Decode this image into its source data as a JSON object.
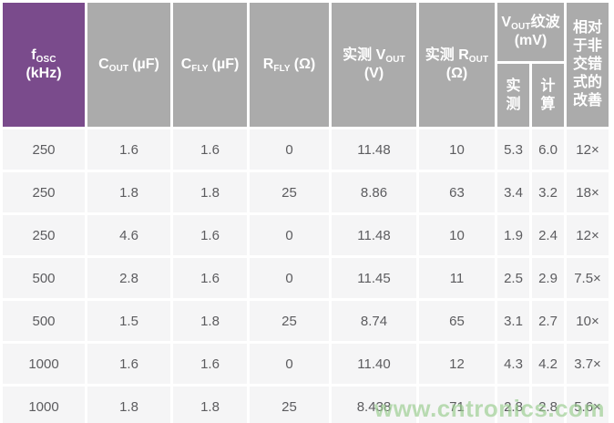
{
  "colors": {
    "header_purple": "#7A4B8C",
    "header_gray": "#ABABAB",
    "cell_bg": "#F5F5F6",
    "cell_text": "#5C5C5F",
    "watermark_green": "#96CB8C"
  },
  "watermark": "www.cntronics.com",
  "table": {
    "header": {
      "fosc": {
        "symbol": "f",
        "sub": "OSC",
        "unit": "(kHz)"
      },
      "cout": {
        "symbol": "C",
        "sub": "OUT",
        "unit": "(µF)"
      },
      "cfly": {
        "symbol": "C",
        "sub": "FLY",
        "unit": "(µF)"
      },
      "rfly": {
        "symbol": "R",
        "sub": "FLY",
        "unit": "(Ω)"
      },
      "vout_meas": {
        "prefix": "实测",
        "symbol": "V",
        "sub": "OUT",
        "unit": "(V)"
      },
      "rout_meas": {
        "prefix": "实测",
        "symbol": "R",
        "sub": "OUT",
        "unit": "(Ω)"
      },
      "ripple": {
        "symbol": "V",
        "sub": "OUT",
        "suffix": "纹波 (mV)"
      },
      "ripple_measured": "实\n测",
      "ripple_calculated": "计\n算",
      "improvement": "相对于非交错式的改善"
    },
    "rows": [
      [
        "250",
        "1.6",
        "1.6",
        "0",
        "11.48",
        "10",
        "5.3",
        "6.0",
        "12×"
      ],
      [
        "250",
        "1.8",
        "1.8",
        "25",
        "8.86",
        "63",
        "3.4",
        "3.2",
        "18×"
      ],
      [
        "250",
        "4.6",
        "1.6",
        "0",
        "11.48",
        "10",
        "1.9",
        "2.4",
        "12×"
      ],
      [
        "500",
        "2.8",
        "1.6",
        "0",
        "11.45",
        "11",
        "2.5",
        "2.9",
        "7.5×"
      ],
      [
        "500",
        "1.5",
        "1.8",
        "25",
        "8.74",
        "65",
        "3.1",
        "2.7",
        "10×"
      ],
      [
        "1000",
        "1.6",
        "1.6",
        "0",
        "11.40",
        "12",
        "4.3",
        "4.2",
        "3.7×"
      ],
      [
        "1000",
        "1.8",
        "1.8",
        "25",
        "8.438",
        "71",
        "2.8",
        "2.8",
        "5.6×"
      ]
    ]
  },
  "chart_data": {
    "type": "table",
    "title": "",
    "columns": [
      "fOSC (kHz)",
      "COUT (µF)",
      "CFLY (µF)",
      "RFLY (Ω)",
      "实测 VOUT (V)",
      "实测 ROUT (Ω)",
      "VOUT纹波 实测 (mV)",
      "VOUT纹波 计算 (mV)",
      "相对于非交错式的改善"
    ],
    "rows": [
      [
        250,
        1.6,
        1.6,
        0,
        11.48,
        10,
        5.3,
        6.0,
        "12×"
      ],
      [
        250,
        1.8,
        1.8,
        25,
        8.86,
        63,
        3.4,
        3.2,
        "18×"
      ],
      [
        250,
        4.6,
        1.6,
        0,
        11.48,
        10,
        1.9,
        2.4,
        "12×"
      ],
      [
        500,
        2.8,
        1.6,
        0,
        11.45,
        11,
        2.5,
        2.9,
        "7.5×"
      ],
      [
        500,
        1.5,
        1.8,
        25,
        8.74,
        65,
        3.1,
        2.7,
        "10×"
      ],
      [
        1000,
        1.6,
        1.6,
        0,
        11.4,
        12,
        4.3,
        4.2,
        "3.7×"
      ],
      [
        1000,
        1.8,
        1.8,
        25,
        8.438,
        71,
        2.8,
        2.8,
        "5.6×"
      ]
    ]
  }
}
